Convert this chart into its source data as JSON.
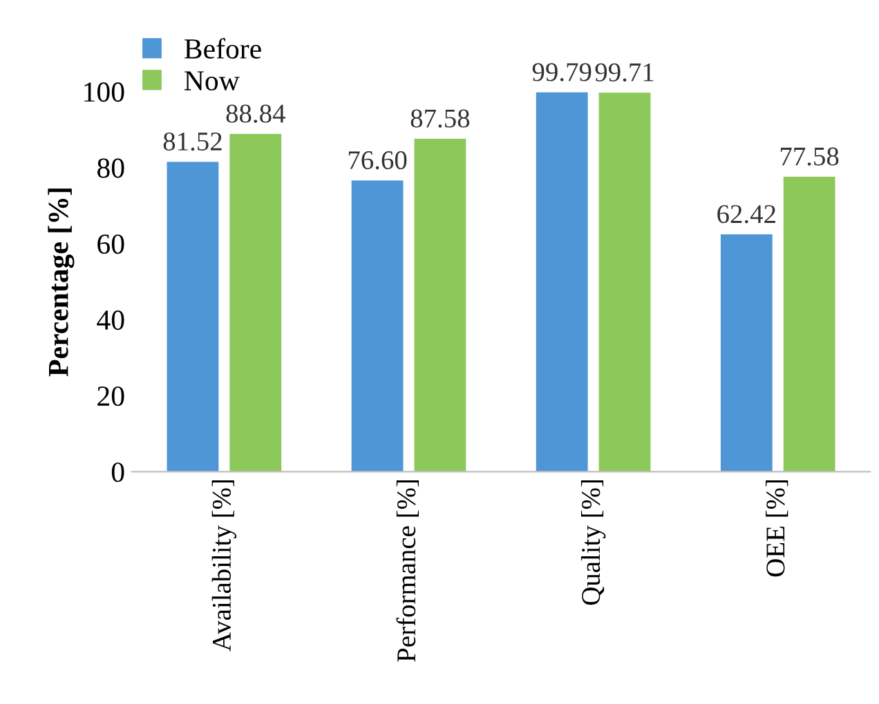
{
  "chart_data": {
    "type": "bar",
    "ylabel": "Percentage [%]",
    "categories": [
      "Availability [%]",
      "Performance [%]",
      "Quality [%]",
      "OEE [%]"
    ],
    "series": [
      {
        "name": "Before",
        "color": "#4e96d6",
        "values": [
          81.52,
          76.6,
          99.79,
          62.42
        ],
        "value_labels": [
          "81.52",
          "76.60",
          "99.79",
          "62.42"
        ]
      },
      {
        "name": "Now",
        "color": "#8dc85a",
        "values": [
          88.84,
          87.58,
          99.71,
          77.58
        ],
        "value_labels": [
          "88.84",
          "87.58",
          "99.71",
          "77.58"
        ]
      }
    ],
    "ylim": [
      0,
      100
    ],
    "yticks": [
      0,
      20,
      40,
      60,
      80,
      100
    ],
    "grid": false,
    "legend": "top left"
  }
}
